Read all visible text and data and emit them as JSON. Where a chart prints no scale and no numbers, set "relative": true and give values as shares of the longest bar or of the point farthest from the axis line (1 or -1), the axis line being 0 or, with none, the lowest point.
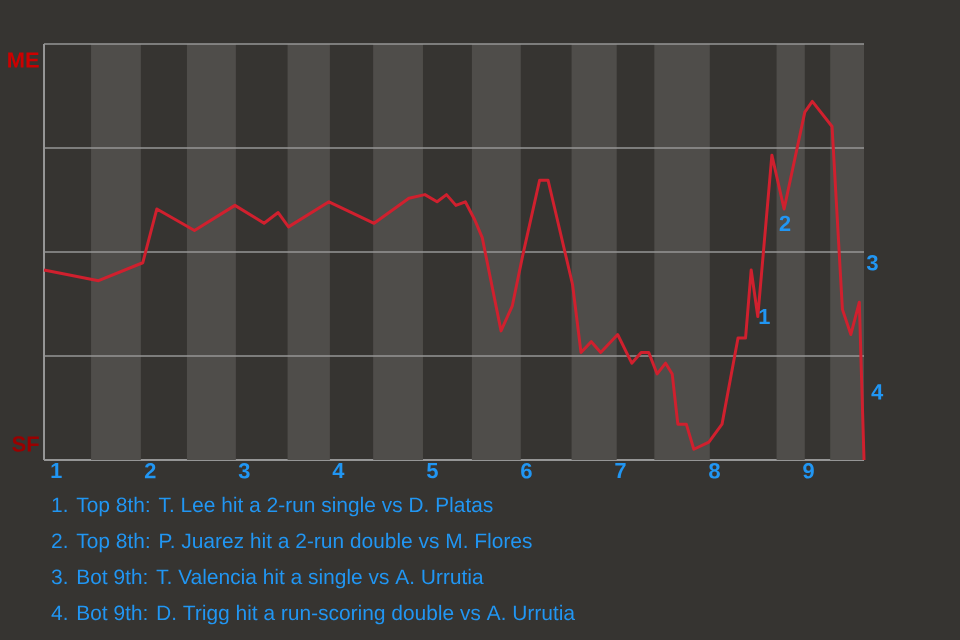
{
  "chart_data": {
    "type": "line",
    "relative": true,
    "xlim": [
      0.87,
      9.59
    ],
    "xticks": [
      1,
      2,
      3,
      4,
      5,
      6,
      7,
      8,
      9
    ],
    "grid": "y",
    "marker": "none",
    "line_style": "solid",
    "bands": [
      {
        "axis": "x",
        "from": 1.37,
        "to": 1.9,
        "color": "#4f4d4a"
      },
      {
        "axis": "x",
        "from": 2.39,
        "to": 2.91,
        "color": "#4f4d4a"
      },
      {
        "axis": "x",
        "from": 3.46,
        "to": 3.91,
        "color": "#4f4d4a"
      },
      {
        "axis": "x",
        "from": 4.37,
        "to": 4.9,
        "color": "#4f4d4a"
      },
      {
        "axis": "x",
        "from": 5.42,
        "to": 5.94,
        "color": "#4f4d4a"
      },
      {
        "axis": "x",
        "from": 6.48,
        "to": 6.96,
        "color": "#4f4d4a"
      },
      {
        "axis": "x",
        "from": 7.36,
        "to": 7.95,
        "color": "#4f4d4a"
      },
      {
        "axis": "x",
        "from": 8.66,
        "to": 8.96,
        "color": "#4f4d4a"
      },
      {
        "axis": "x",
        "from": 9.23,
        "to": 9.59,
        "color": "#4f4d4a"
      }
    ],
    "series": [
      {
        "color": "#d0202e",
        "x": [
          0.87,
          1.45,
          1.92,
          2.07,
          2.47,
          2.9,
          3.21,
          3.36,
          3.47,
          3.9,
          4.38,
          4.75,
          4.92,
          5.05,
          5.15,
          5.25,
          5.35,
          5.45,
          5.53,
          5.73,
          5.85,
          5.96,
          6.14,
          6.23,
          6.49,
          6.58,
          6.69,
          6.79,
          6.97,
          7.12,
          7.22,
          7.3,
          7.39,
          7.48,
          7.55,
          7.61,
          7.7,
          7.78,
          7.94,
          8.08,
          8.25,
          8.33,
          8.39,
          8.46,
          8.61,
          8.74,
          8.96,
          9.04,
          9.25,
          9.36,
          9.45,
          9.54,
          9.56,
          9.59
        ],
        "values": [
          0.53,
          0.5,
          0.55,
          0.7,
          0.64,
          0.71,
          0.66,
          0.69,
          0.65,
          0.72,
          0.66,
          0.73,
          0.74,
          0.72,
          0.74,
          0.71,
          0.72,
          0.67,
          0.62,
          0.36,
          0.43,
          0.57,
          0.78,
          0.78,
          0.49,
          0.3,
          0.33,
          0.3,
          0.35,
          0.27,
          0.3,
          0.3,
          0.24,
          0.27,
          0.24,
          0.1,
          0.1,
          0.03,
          0.05,
          0.1,
          0.34,
          0.34,
          0.53,
          0.4,
          0.85,
          0.7,
          0.97,
          1,
          0.93,
          0.42,
          0.35,
          0.44,
          0.26,
          0
        ]
      }
    ],
    "annotations": [
      "ME",
      "SF",
      {
        "text": "1",
        "x": 8.39,
        "y": 0.4
      },
      {
        "text": "2",
        "x": 8.61,
        "y": 0.66
      },
      {
        "text": "3",
        "x": 9.54,
        "y": 0.55
      },
      {
        "text": "4",
        "x": 9.59,
        "y": 0.19
      },
      "1. Top 8th: T. Lee hit a 2-run single vs D. Platas",
      "2. Top 8th: P. Juarez hit a 2-run double vs M. Flores",
      "3. Bot 9th: T. Valencia hit a single vs A. Urrutia",
      "4. Bot 9th: D. Trigg hit a run-scoring double vs A. Urrutia"
    ]
  }
}
